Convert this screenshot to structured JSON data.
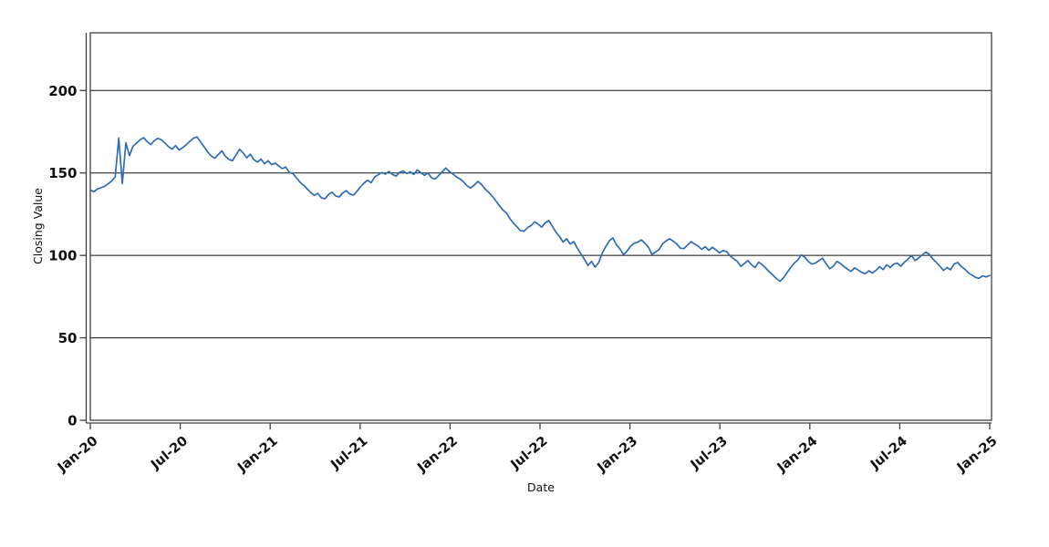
{
  "chart_data": {
    "type": "line",
    "title": "",
    "xlabel": "Date",
    "ylabel": "Closing Value",
    "legend_position": "none",
    "grid": "horizontal-solid-black",
    "x_tick_labels": [
      "Jan-20",
      "Jul-20",
      "Jan-21",
      "Jul-21",
      "Jan-22",
      "Jul-22",
      "Jan-23",
      "Jul-23",
      "Jan-24",
      "Jul-24",
      "Jan-25"
    ],
    "x_tick_rotation_deg": -40,
    "x_range": [
      "2020-01",
      "2025-01"
    ],
    "ylim": [
      0,
      235
    ],
    "yticks": [
      0,
      50,
      100,
      150,
      200
    ],
    "series": [
      {
        "name": "Closing Value",
        "sampling": "weekly, uniform from Jan-2020 to Jan-2025",
        "x_start_year": 2020.0,
        "x_end_year": 2025.0,
        "values": [
          139.6,
          138.6,
          140.3,
          141.0,
          141.9,
          143.4,
          145.1,
          147.6,
          171.2,
          143.6,
          168.3,
          160.5,
          166.2,
          168.1,
          170.2,
          171.4,
          169.0,
          167.2,
          169.6,
          171.0,
          170.1,
          168.2,
          166.0,
          164.4,
          166.6,
          163.9,
          165.4,
          167.1,
          169.2,
          171.0,
          171.9,
          168.9,
          165.9,
          162.8,
          160.4,
          158.9,
          161.2,
          163.4,
          160.1,
          158.2,
          157.4,
          161.0,
          164.4,
          162.1,
          159.2,
          161.4,
          158.1,
          156.6,
          158.4,
          155.6,
          157.4,
          155.1,
          155.9,
          154.2,
          152.6,
          153.6,
          150.4,
          149.6,
          147.1,
          144.4,
          142.6,
          140.4,
          138.1,
          136.4,
          137.6,
          134.9,
          134.3,
          136.9,
          138.3,
          136.1,
          135.4,
          137.9,
          139.3,
          137.3,
          136.6,
          138.9,
          141.6,
          143.9,
          145.6,
          144.1,
          147.6,
          148.9,
          150.3,
          149.3,
          150.9,
          149.1,
          148.1,
          150.4,
          151.3,
          149.6,
          150.7,
          149.1,
          151.9,
          150.1,
          148.6,
          149.9,
          147.1,
          146.3,
          148.4,
          150.7,
          153.0,
          150.9,
          149.4,
          147.6,
          146.4,
          144.6,
          142.1,
          140.9,
          142.6,
          144.9,
          143.1,
          140.4,
          138.4,
          136.1,
          133.3,
          130.4,
          127.6,
          125.9,
          122.4,
          119.6,
          117.4,
          115.1,
          114.6,
          116.9,
          118.1,
          120.4,
          118.9,
          117.1,
          119.9,
          121.1,
          117.6,
          114.1,
          111.4,
          108.1,
          110.1,
          106.9,
          108.4,
          104.4,
          101.1,
          97.6,
          93.9,
          96.4,
          92.9,
          95.6,
          101.4,
          105.4,
          108.9,
          110.6,
          106.4,
          103.9,
          100.4,
          102.6,
          105.6,
          107.4,
          108.1,
          109.4,
          107.4,
          104.9,
          100.6,
          102.1,
          103.6,
          107.1,
          108.9,
          110.1,
          108.6,
          106.9,
          104.4,
          104.1,
          106.3,
          108.3,
          106.9,
          105.6,
          103.7,
          105.3,
          103.1,
          104.9,
          103.3,
          101.6,
          102.9,
          102.3,
          99.7,
          97.9,
          96.4,
          93.3,
          95.1,
          96.9,
          94.3,
          92.7,
          95.9,
          94.4,
          92.3,
          90.1,
          88.1,
          85.9,
          84.3,
          86.4,
          89.6,
          92.6,
          95.3,
          97.1,
          100.3,
          98.9,
          96.3,
          94.7,
          95.4,
          96.9,
          98.3,
          94.9,
          91.9,
          93.4,
          96.3,
          95.1,
          93.3,
          91.7,
          90.3,
          92.4,
          91.1,
          89.7,
          88.9,
          90.7,
          89.3,
          90.9,
          93.1,
          91.4,
          94.3,
          92.7,
          94.7,
          95.3,
          93.4,
          95.9,
          97.7,
          99.9,
          96.9,
          98.4,
          100.3,
          102.0,
          100.7,
          97.9,
          95.7,
          93.4,
          90.9,
          92.7,
          91.3,
          94.9,
          95.7,
          93.3,
          91.7,
          89.4,
          88.1,
          86.7,
          86.1,
          87.6,
          86.9,
          87.9
        ]
      }
    ],
    "colors": {
      "line": "#2e6cb3",
      "gridline": "#111111",
      "frame": "#3f3f3f",
      "tick_text": "#111111",
      "axis_title_text": "#111111",
      "background": "#ffffff"
    }
  }
}
